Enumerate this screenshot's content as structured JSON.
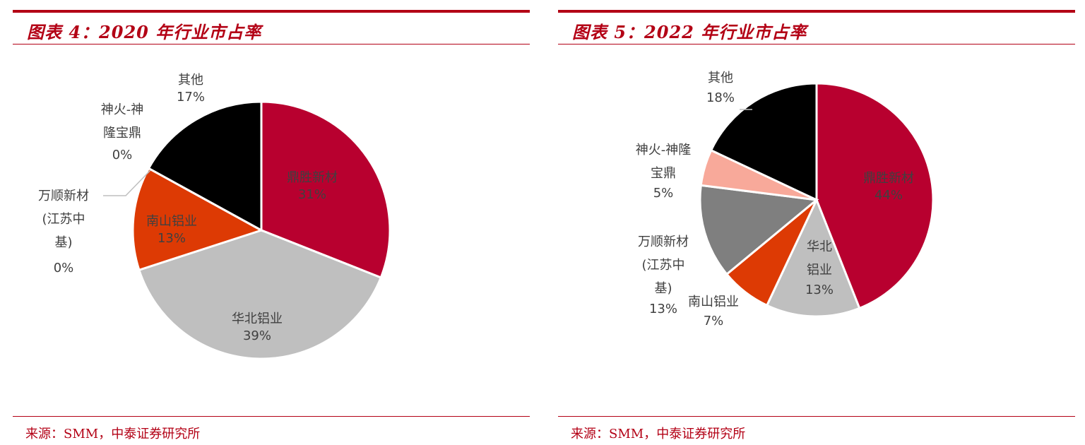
{
  "charts": [
    {
      "title": "图表 4：2020 年行业市占率",
      "source": "来源：SMM，中泰证券研究所"
    },
    {
      "title": "图表 5：2022 年行业市占率",
      "source": "来源：SMM，中泰证券研究所"
    }
  ],
  "chart_data": [
    {
      "type": "pie",
      "title": "图表 4：2020 年行业市占率",
      "slices": [
        {
          "label": "鼎胜新材",
          "value": 31,
          "display": "31%",
          "color": "#b8002f"
        },
        {
          "label": "华北铝业",
          "value": 39,
          "display": "39%",
          "color": "#bfbfbf"
        },
        {
          "label": "南山铝业",
          "value": 13,
          "display": "13%",
          "color": "#dd3a04"
        },
        {
          "label": "万顺新材(江苏中基)",
          "value": 0,
          "display": "0%",
          "color": "#7f7f7f"
        },
        {
          "label": "神火-神隆宝鼎",
          "value": 0,
          "display": "0%",
          "color": "#f8a99a"
        },
        {
          "label": "其他",
          "value": 17,
          "display": "17%",
          "color": "#000000"
        }
      ]
    },
    {
      "type": "pie",
      "title": "图表 5：2022 年行业市占率",
      "slices": [
        {
          "label": "鼎胜新材",
          "value": 44,
          "display": "44%",
          "color": "#b8002f"
        },
        {
          "label": "华北铝业",
          "value": 13,
          "display": "13%",
          "color": "#bfbfbf"
        },
        {
          "label": "南山铝业",
          "value": 7,
          "display": "7%",
          "color": "#dd3a04"
        },
        {
          "label": "万顺新材(江苏中基)",
          "value": 13,
          "display": "13%",
          "color": "#7f7f7f"
        },
        {
          "label": "神火-神隆宝鼎",
          "value": 5,
          "display": "5%",
          "color": "#f8a99a"
        },
        {
          "label": "其他",
          "value": 18,
          "display": "18%",
          "color": "#000000"
        }
      ]
    }
  ]
}
